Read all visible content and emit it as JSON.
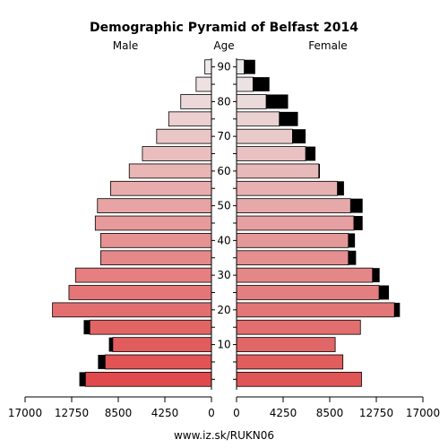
{
  "chart_data": {
    "type": "bar",
    "title": "Demographic Pyramid of Belfast 2014",
    "left_label": "Male",
    "center_label": "Age",
    "right_label": "Female",
    "footer": "www.iz.sk/RUKN06",
    "age_groups": [
      "0-4",
      "5-9",
      "10-14",
      "15-19",
      "20-24",
      "25-29",
      "30-34",
      "35-39",
      "40-44",
      "45-49",
      "50-54",
      "55-59",
      "60-64",
      "65-69",
      "70-74",
      "75-79",
      "80-84",
      "85-89",
      "90+"
    ],
    "age_tick_labels": [
      "10",
      "20",
      "30",
      "40",
      "50",
      "60",
      "70",
      "80",
      "90"
    ],
    "axis_ticks": [
      "17000",
      "12750",
      "8500",
      "4250",
      "0",
      "4250",
      "8500",
      "12750",
      "17000"
    ],
    "xlim": [
      0,
      17000
    ],
    "series": [
      {
        "name": "Male",
        "values": [
          11500,
          9700,
          9000,
          11100,
          14500,
          13000,
          12400,
          10100,
          10100,
          10600,
          10400,
          9200,
          7500,
          6300,
          5000,
          3900,
          2800,
          1400,
          600
        ],
        "excess": [
          550,
          650,
          350,
          550,
          0,
          0,
          0,
          0,
          0,
          0,
          0,
          0,
          0,
          0,
          0,
          0,
          0,
          0,
          0
        ]
      },
      {
        "name": "Female",
        "values": [
          11400,
          9700,
          9000,
          11300,
          14400,
          13000,
          12400,
          10200,
          10200,
          10700,
          10400,
          9200,
          7500,
          6300,
          5100,
          3900,
          2700,
          1500,
          700
        ],
        "excess": [
          0,
          0,
          0,
          0,
          500,
          900,
          650,
          700,
          600,
          800,
          1100,
          600,
          100,
          900,
          1200,
          1700,
          2000,
          1500,
          1000
        ]
      }
    ],
    "colors": {
      "male_young": "#e04a4c",
      "male_old": "#eeeaea",
      "female_young": "#e05556",
      "female_old": "#ecebeb",
      "excess": "#000000",
      "outline": "#000000"
    }
  }
}
